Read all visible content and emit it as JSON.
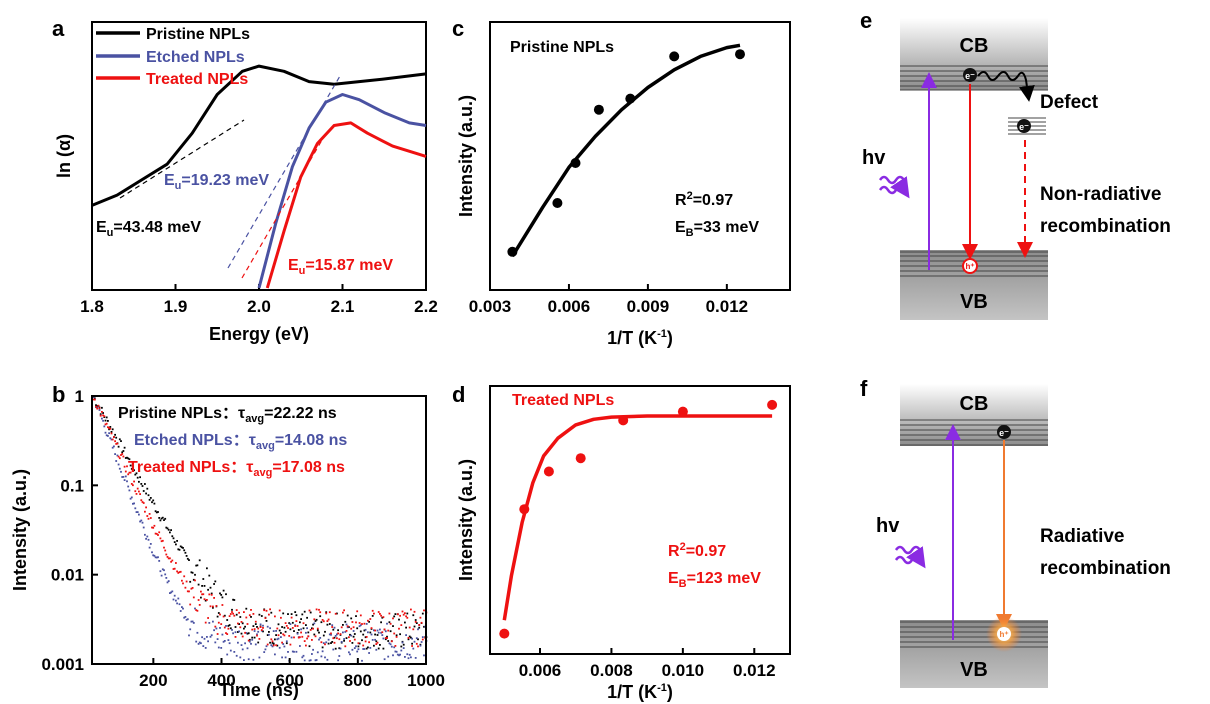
{
  "colors": {
    "pristine": "#000000",
    "etched": "#4a52a2",
    "treated": "#ee1111",
    "arrow_purple": "#8a2be2",
    "arrow_orange": "#f07a30"
  },
  "panel_labels": {
    "a": "a",
    "b": "b",
    "c": "c",
    "d": "d",
    "e": "e",
    "f": "f"
  },
  "chart_data": [
    {
      "panel": "a",
      "type": "line",
      "xlabel": "Energy (eV)",
      "ylabel": "ln (α)",
      "xlim": [
        1.8,
        2.2
      ],
      "xticks": [
        "1.8",
        "1.9",
        "2.0",
        "2.1",
        "2.2"
      ],
      "legend": [
        "Pristine NPLs",
        "Etched NPLs",
        "Treated NPLs"
      ],
      "legend_position": "top-left",
      "series": [
        {
          "name": "Pristine NPLs",
          "x": [
            1.8,
            1.83,
            1.86,
            1.89,
            1.92,
            1.95,
            1.98,
            2.0,
            2.03,
            2.06,
            2.09,
            2.12,
            2.15,
            2.2
          ],
          "y": [
            0.32,
            0.36,
            0.42,
            0.48,
            0.6,
            0.75,
            0.84,
            0.86,
            0.84,
            0.8,
            0.79,
            0.8,
            0.81,
            0.83
          ]
        },
        {
          "name": "Etched NPLs",
          "x": [
            2.0,
            2.02,
            2.04,
            2.06,
            2.08,
            2.1,
            2.12,
            2.15,
            2.18,
            2.2
          ],
          "y": [
            0.0,
            0.25,
            0.47,
            0.62,
            0.72,
            0.75,
            0.73,
            0.68,
            0.64,
            0.63
          ]
        },
        {
          "name": "Treated NPLs",
          "x": [
            2.01,
            2.03,
            2.05,
            2.07,
            2.09,
            2.11,
            2.13,
            2.16,
            2.19,
            2.2
          ],
          "y": [
            0.0,
            0.22,
            0.43,
            0.56,
            0.63,
            0.64,
            0.6,
            0.55,
            0.52,
            0.51
          ]
        }
      ],
      "annotations": [
        {
          "base": "E",
          "sub": "u",
          "value": "=43.48 meV",
          "series": "Pristine NPLs"
        },
        {
          "base": "E",
          "sub": "u",
          "value": "=19.23 meV",
          "series": "Etched NPLs"
        },
        {
          "base": "E",
          "sub": "u",
          "value": "=15.87 meV",
          "series": "Treated NPLs"
        }
      ]
    },
    {
      "panel": "b",
      "type": "scatter",
      "xlabel": "Time (ns)",
      "ylabel": "Intensity (a.u.)",
      "xlim": [
        20,
        1000
      ],
      "ylim": [
        0.001,
        1
      ],
      "log_y": true,
      "xticks": [
        "200",
        "400",
        "600",
        "800",
        "1000"
      ],
      "yticks": [
        "0.001",
        "0.01",
        "0.1",
        "1"
      ],
      "series": [
        {
          "name": "Pristine NPLs",
          "tau": 63.0,
          "floor": 0.0024
        },
        {
          "name": "Etched NPLs",
          "tau": 43.0,
          "floor": 0.0018
        },
        {
          "name": "Treated NPLs",
          "tau": 52.0,
          "floor": 0.0026
        }
      ],
      "legend": [
        {
          "sample": "Pristine NPLs：",
          "tau_base": "τ",
          "tau_sub": "avg",
          "tau_value": "=22.22 ns"
        },
        {
          "sample": "Etched NPLs：",
          "tau_base": "τ",
          "tau_sub": "avg",
          "tau_value": "=14.08 ns"
        },
        {
          "sample": "Treated NPLs：",
          "tau_base": "τ",
          "tau_sub": "avg",
          "tau_value": "=17.08 ns"
        }
      ]
    },
    {
      "panel": "c",
      "type": "scatter",
      "title": "Pristine NPLs",
      "xlabel": "1/T (K⁻¹)",
      "ylabel": "Intensity (a.u.)",
      "xlim": [
        0.003,
        0.0144
      ],
      "xticks": [
        "0.003",
        "0.006",
        "0.009",
        "0.012"
      ],
      "points_x": [
        0.00385,
        0.00556,
        0.00625,
        0.00714,
        0.00833,
        0.01,
        0.0125
      ],
      "points_y": [
        0.1,
        0.32,
        0.5,
        0.74,
        0.79,
        0.98,
        0.99
      ],
      "fit_x": [
        0.00385,
        0.005,
        0.006,
        0.007,
        0.008,
        0.009,
        0.01,
        0.011,
        0.012,
        0.0125
      ],
      "fit_y": [
        0.08,
        0.3,
        0.48,
        0.62,
        0.74,
        0.84,
        0.92,
        0.98,
        1.02,
        1.03
      ],
      "stats": {
        "r2_base": "R",
        "r2_sup": "2",
        "r2_value": "=0.97",
        "eb_base": "E",
        "eb_sub": "B",
        "eb_value": "=33 meV"
      }
    },
    {
      "panel": "d",
      "type": "scatter",
      "title": "Treated NPLs",
      "xlabel": "1/T (K⁻¹)",
      "ylabel": "Intensity (a.u.)",
      "xlim": [
        0.0046,
        0.013
      ],
      "xticks": [
        "0.006",
        "0.008",
        "0.010",
        "0.012"
      ],
      "points_x": [
        0.005,
        0.00556,
        0.00625,
        0.00714,
        0.00833,
        0.01,
        0.0125
      ],
      "points_y": [
        0.02,
        0.58,
        0.75,
        0.81,
        0.98,
        1.02,
        1.05
      ],
      "fit_x": [
        0.005,
        0.0052,
        0.0055,
        0.0058,
        0.0061,
        0.0065,
        0.007,
        0.0075,
        0.008,
        0.009,
        0.01,
        0.011,
        0.0125
      ],
      "fit_y": [
        0.08,
        0.28,
        0.52,
        0.7,
        0.82,
        0.9,
        0.96,
        0.985,
        0.995,
        1.0,
        1.0,
        1.0,
        1.0
      ],
      "stats": {
        "r2_base": "R",
        "r2_sup": "2",
        "r2_value": "=0.97",
        "eb_base": "E",
        "eb_sub": "B",
        "eb_value": "=123 meV"
      }
    }
  ],
  "diagram_e": {
    "cb": "CB",
    "vb": "VB",
    "hv": "hv",
    "defect": "Defect",
    "nonrad_1": "Non-radiative",
    "nonrad_2": "recombination",
    "electron": "e⁻",
    "hole": "h⁺"
  },
  "diagram_f": {
    "cb": "CB",
    "vb": "VB",
    "hv": "hv",
    "rad_1": "Radiative",
    "rad_2": "recombination",
    "electron": "e⁻",
    "hole": "h⁺"
  }
}
